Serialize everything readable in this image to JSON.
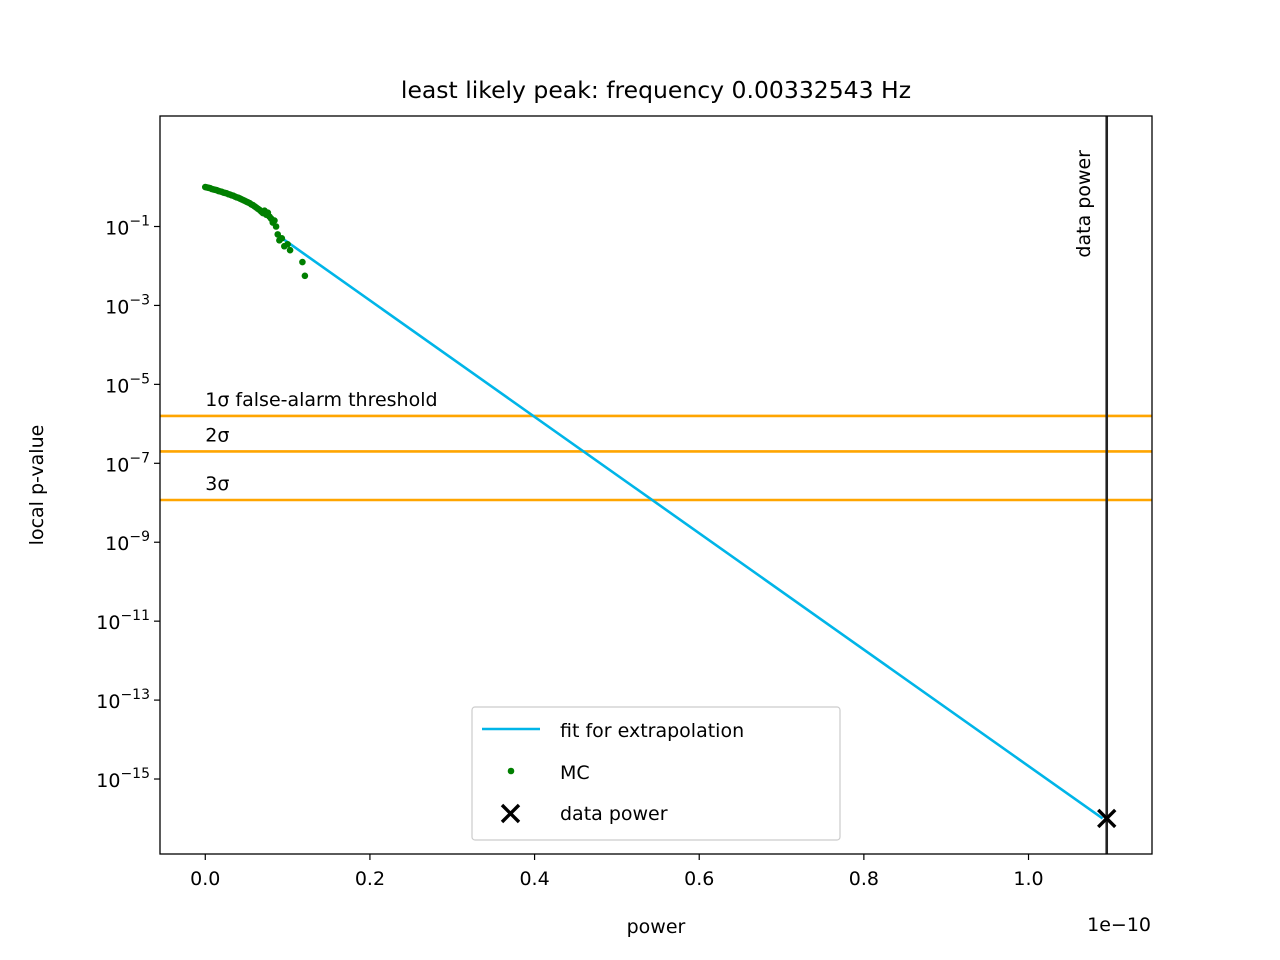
{
  "chart_data": {
    "type": "scatter",
    "title": "least likely peak: frequency 0.00332543 Hz",
    "xlabel": "power",
    "ylabel": "local p-value",
    "x_offset_label": "1e−10",
    "xlim": [
      -0.055,
      1.15
    ],
    "ylim_log10": [
      -16.9,
      1.8
    ],
    "yscale": "log",
    "grid": false,
    "legend_position": "lower-center",
    "x_ticks": [
      {
        "value": 0.0,
        "label": "0.0"
      },
      {
        "value": 0.2,
        "label": "0.2"
      },
      {
        "value": 0.4,
        "label": "0.4"
      },
      {
        "value": 0.6,
        "label": "0.6"
      },
      {
        "value": 0.8,
        "label": "0.8"
      },
      {
        "value": 1.0,
        "label": "1.0"
      }
    ],
    "y_ticks": [
      {
        "exp": -1,
        "base": "10",
        "sup": "−1"
      },
      {
        "exp": -3,
        "base": "10",
        "sup": "−3"
      },
      {
        "exp": -5,
        "base": "10",
        "sup": "−5"
      },
      {
        "exp": -7,
        "base": "10",
        "sup": "−7"
      },
      {
        "exp": -9,
        "base": "10",
        "sup": "−9"
      },
      {
        "exp": -11,
        "base": "10",
        "sup": "−11"
      },
      {
        "exp": -13,
        "base": "10",
        "sup": "−13"
      },
      {
        "exp": -15,
        "base": "10",
        "sup": "−15"
      }
    ],
    "colors": {
      "fit": "#00b5e8",
      "mc": "#007f00",
      "threshold": "#ffa500",
      "data_power": "#000000",
      "vline": "#222222"
    },
    "fit_line": {
      "name": "fit for extrapolation",
      "x": [
        0.09,
        1.09
      ],
      "log10_y": [
        -1.25,
        -16.0
      ]
    },
    "mc_series": {
      "name": "MC",
      "x": [
        0.0,
        0.002,
        0.004,
        0.006,
        0.008,
        0.01,
        0.012,
        0.014,
        0.016,
        0.018,
        0.02,
        0.022,
        0.024,
        0.026,
        0.028,
        0.03,
        0.032,
        0.034,
        0.036,
        0.038,
        0.04,
        0.042,
        0.044,
        0.046,
        0.048,
        0.05,
        0.052,
        0.054,
        0.056,
        0.058,
        0.06,
        0.062,
        0.064,
        0.066,
        0.068,
        0.07,
        0.072,
        0.074,
        0.076,
        0.078,
        0.08,
        0.082,
        0.084,
        0.086,
        0.088,
        0.09,
        0.093,
        0.096,
        0.1,
        0.103,
        0.118,
        0.121
      ],
      "log10_y": [
        0.0,
        -0.01,
        -0.02,
        -0.03,
        -0.05,
        -0.06,
        -0.07,
        -0.08,
        -0.1,
        -0.11,
        -0.12,
        -0.14,
        -0.15,
        -0.16,
        -0.18,
        -0.19,
        -0.21,
        -0.22,
        -0.24,
        -0.26,
        -0.27,
        -0.29,
        -0.31,
        -0.33,
        -0.35,
        -0.37,
        -0.39,
        -0.41,
        -0.44,
        -0.46,
        -0.49,
        -0.52,
        -0.55,
        -0.58,
        -0.62,
        -0.66,
        -0.6,
        -0.7,
        -0.65,
        -0.75,
        -0.8,
        -0.9,
        -0.85,
        -1.0,
        -1.2,
        -1.35,
        -1.3,
        -1.5,
        -1.45,
        -1.6,
        -1.9,
        -2.25
      ]
    },
    "data_power": {
      "name": "data power",
      "x": 1.095,
      "log10_y": -16.0,
      "vline_label": "data power"
    },
    "thresholds": [
      {
        "label": "1σ false-alarm threshold",
        "log10_y": -5.8
      },
      {
        "label": "2σ",
        "log10_y": -6.7
      },
      {
        "label": "3σ",
        "log10_y": -7.93
      }
    ]
  }
}
